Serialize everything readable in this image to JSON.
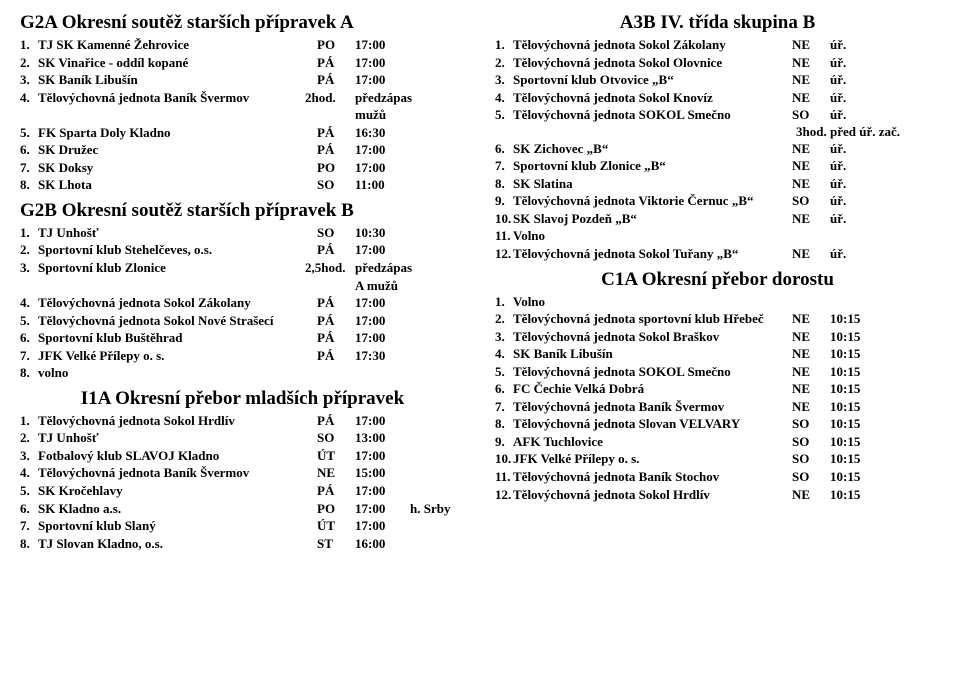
{
  "left": {
    "g2a": {
      "title": "G2A  Okresní soutěž starších přípravek A",
      "rows": [
        {
          "n": "1.",
          "name": "TJ SK Kamenné Žehrovice",
          "day": "PO",
          "time": "17:00",
          "extra": ""
        },
        {
          "n": "2.",
          "name": "SK Vinařice - oddíl kopané",
          "day": "PÁ",
          "time": "17:00",
          "extra": ""
        },
        {
          "n": "3.",
          "name": "SK Baník Libušín",
          "day": "PÁ",
          "time": "17:00",
          "extra": ""
        },
        {
          "n": "4.",
          "name": "Tělovýchovná jednota Baník Švermov",
          "day": "2hod.",
          "time": "předzápas mužů",
          "extra": ""
        },
        {
          "n": "5.",
          "name": "FK Sparta Doly Kladno",
          "day": "PÁ",
          "time": "16:30",
          "extra": ""
        },
        {
          "n": "6.",
          "name": "SK Družec",
          "day": "PÁ",
          "time": "17:00",
          "extra": ""
        },
        {
          "n": "7.",
          "name": "SK Doksy",
          "day": "PO",
          "time": "17:00",
          "extra": ""
        },
        {
          "n": "8.",
          "name": "SK Lhota",
          "day": "SO",
          "time": "11:00",
          "extra": ""
        }
      ]
    },
    "g2b": {
      "title": "G2B  Okresní soutěž starších přípravek B",
      "rows": [
        {
          "n": "1.",
          "name": "TJ Unhošť",
          "day": "SO",
          "time": "10:30",
          "extra": ""
        },
        {
          "n": "2.",
          "name": "Sportovní klub Stehelčeves, o.s.",
          "day": "PÁ",
          "time": "17:00",
          "extra": ""
        },
        {
          "n": "3.",
          "name": "Sportovní klub Zlonice",
          "day": "2,5hod.",
          "time": "předzápas A mužů",
          "extra": ""
        },
        {
          "n": "4.",
          "name": "Tělovýchovná jednota Sokol Zákolany",
          "day": "PÁ",
          "time": "17:00",
          "extra": ""
        },
        {
          "n": "5.",
          "name": "Tělovýchovná jednota Sokol Nové Strašecí",
          "day": "PÁ",
          "time": "17:00",
          "extra": ""
        },
        {
          "n": "6.",
          "name": "Sportovní klub Buštěhrad",
          "day": "PÁ",
          "time": "17:00",
          "extra": ""
        },
        {
          "n": "7.",
          "name": "JFK Velké Přílepy o. s.",
          "day": "PÁ",
          "time": "17:30",
          "extra": ""
        },
        {
          "n": "8.",
          "name": "volno",
          "day": "",
          "time": "",
          "extra": ""
        }
      ]
    },
    "i1a": {
      "title": "I1A  Okresní přebor mladších přípravek",
      "rows": [
        {
          "n": "1.",
          "name": "Tělovýchovná jednota Sokol Hrdlív",
          "day": "PÁ",
          "time": "17:00",
          "extra": ""
        },
        {
          "n": "2.",
          "name": "TJ Unhošť",
          "day": "SO",
          "time": "13:00",
          "extra": ""
        },
        {
          "n": "3.",
          "name": "Fotbalový klub SLAVOJ Kladno",
          "day": "ÚT",
          "time": "17:00",
          "extra": ""
        },
        {
          "n": "4.",
          "name": "Tělovýchovná jednota Baník Švermov",
          "day": "NE",
          "time": "15:00",
          "extra": ""
        },
        {
          "n": "5.",
          "name": " SK  Kročehlavy",
          "day": "PÁ",
          "time": "17:00",
          "extra": ""
        },
        {
          "n": "6.",
          "name": "SK Kladno a.s.",
          "day": "PO",
          "time": "17:00",
          "extra": "h. Srby"
        },
        {
          "n": "7.",
          "name": "Sportovní klub Slaný",
          "day": "ÚT",
          "time": "17:00",
          "extra": ""
        },
        {
          "n": "8.",
          "name": "TJ Slovan Kladno, o.s.",
          "day": "ST",
          "time": "16:00",
          "extra": ""
        }
      ]
    }
  },
  "right": {
    "a3b": {
      "title": "A3B  IV. třída skupina B",
      "rows": [
        {
          "n": "1.",
          "name": "Tělovýchovná jednota Sokol Zákolany",
          "day": "NE",
          "time": "úř.",
          "extra": ""
        },
        {
          "n": "2.",
          "name": "Tělovýchovná jednota Sokol Olovnice",
          "day": "NE",
          "time": "úř.",
          "extra": ""
        },
        {
          "n": "3.",
          "name": "Sportovní klub Otvovice „B“",
          "day": "NE",
          "time": "úř.",
          "extra": ""
        },
        {
          "n": "4.",
          "name": "Tělovýchovná jednota Sokol Knovíz",
          "day": "NE",
          "time": "úř.",
          "extra": ""
        },
        {
          "n": "5.",
          "name": "Tělovýchovná jednota SOKOL Smečno",
          "day": "SO",
          "time": "úř.",
          "extra": ""
        }
      ],
      "note": "3hod. před úř. zač.",
      "rows2": [
        {
          "n": "6.",
          "name": "SK Zichovec „B“",
          "day": "NE",
          "time": "úř.",
          "extra": ""
        },
        {
          "n": "7.",
          "name": "Sportovní klub Zlonice „B“",
          "day": "NE",
          "time": "úř.",
          "extra": ""
        },
        {
          "n": "8.",
          "name": "SK Slatina",
          "day": "NE",
          "time": "úř.",
          "extra": ""
        },
        {
          "n": "9.",
          "name": "Tělovýchovná jednota Viktorie Černuc „B“",
          "day": "SO",
          "time": "úř.",
          "extra": ""
        },
        {
          "n": "10.",
          "name": "SK Slavoj Pozdeň „B“",
          "day": "NE",
          "time": "úř.",
          "extra": ""
        },
        {
          "n": "11.",
          "name": "Volno",
          "day": "",
          "time": "",
          "extra": ""
        },
        {
          "n": "12.",
          "name": "Tělovýchovná jednota Sokol Tuřany „B“",
          "day": "NE",
          "time": "úř.",
          "extra": ""
        }
      ]
    },
    "c1a": {
      "title": "C1A  Okresní přebor dorostu",
      "rows": [
        {
          "n": "1.",
          "name": "Volno",
          "day": "",
          "time": "",
          "extra": ""
        },
        {
          "n": "2.",
          "name": "Tělovýchovná jednota sportovní klub Hřebeč",
          "day": "NE",
          "time": "10:15",
          "extra": ""
        },
        {
          "n": "3.",
          "name": "Tělovýchovná jednota Sokol Braškov",
          "day": "NE",
          "time": "10:15",
          "extra": ""
        },
        {
          "n": "4.",
          "name": "SK Baník Libušín",
          "day": "NE",
          "time": "10:15",
          "extra": ""
        },
        {
          "n": "5.",
          "name": "Tělovýchovná jednota SOKOL Smečno",
          "day": "NE",
          "time": "10:15",
          "extra": ""
        },
        {
          "n": "6.",
          "name": "FC Čechie Velká Dobrá",
          "day": "NE",
          "time": "10:15",
          "extra": ""
        },
        {
          "n": "7.",
          "name": "Tělovýchovná jednota Baník Švermov",
          "day": "NE",
          "time": "10:15",
          "extra": ""
        },
        {
          "n": "8.",
          "name": "Tělovýchovná jednota Slovan VELVARY",
          "day": "SO",
          "time": "10:15",
          "extra": ""
        },
        {
          "n": "9.",
          "name": " AFK  Tuchlovice",
          "day": "SO",
          "time": "10:15",
          "extra": ""
        },
        {
          "n": "10.",
          "name": "JFK Velké Přílepy o. s.",
          "day": "SO",
          "time": "10:15",
          "extra": ""
        },
        {
          "n": "11.",
          "name": "Tělovýchovná jednota Baník Stochov",
          "day": "SO",
          "time": "10:15",
          "extra": ""
        },
        {
          "n": "12.",
          "name": "Tělovýchovná jednota Sokol Hrdlív",
          "day": "NE",
          "time": "10:15",
          "extra": ""
        }
      ]
    }
  }
}
